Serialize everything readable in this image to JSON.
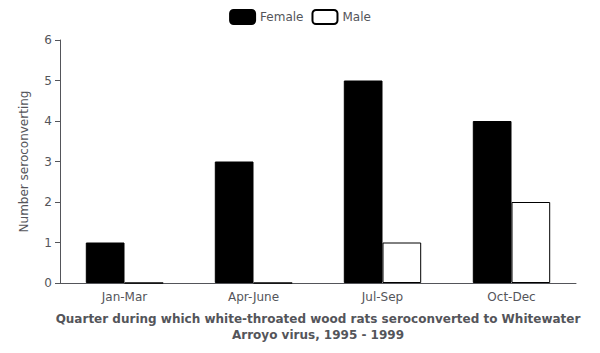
{
  "chart_data": {
    "type": "bar",
    "categories": [
      "Jan-Mar",
      "Apr-June",
      "Jul-Sep",
      "Oct-Dec"
    ],
    "series": [
      {
        "name": "Female",
        "color": "#000000",
        "values": [
          1,
          3,
          5,
          4
        ]
      },
      {
        "name": "Male",
        "color": "#ffffff",
        "values": [
          0,
          0,
          1,
          2
        ]
      }
    ],
    "xlabel": "Quarter during which white-throated wood rats seroconverted to Whitewater\nArroyo virus, 1995 - 1999",
    "ylabel": "Number seroconverting",
    "ylim": [
      0,
      6
    ],
    "yticks": [
      0,
      1,
      2,
      3,
      4,
      5,
      6
    ],
    "grid": false,
    "legend": "top"
  }
}
